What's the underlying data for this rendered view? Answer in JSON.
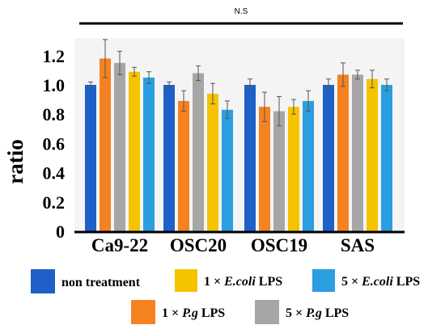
{
  "chart_data": {
    "type": "bar",
    "categories": [
      "Ca9-22",
      "OSC20",
      "OSC19",
      "SAS"
    ],
    "ylabel": "ratio",
    "ylim": [
      0,
      1.3
    ],
    "yticks": [
      "0",
      "0.2",
      "0.4",
      "0.6",
      "0.8",
      "1.0",
      "1.2"
    ],
    "significance": "N.S",
    "series": [
      {
        "name": "non treatment",
        "color": "#1f5fc8",
        "values": [
          1.0,
          1.0,
          1.0,
          1.0
        ],
        "errors": [
          0.02,
          0.02,
          0.04,
          0.04
        ]
      },
      {
        "name": "1 × P.g LPS",
        "label_prefix": "1 × ",
        "label_italic": "P.g",
        "label_suffix": " LPS",
        "color": "#f58220",
        "values": [
          1.18,
          0.89,
          0.85,
          1.07
        ],
        "errors": [
          0.13,
          0.07,
          0.1,
          0.08
        ]
      },
      {
        "name": "5 × P.g LPS",
        "label_prefix": "5 × ",
        "label_italic": "P.g",
        "label_suffix": " LPS",
        "color": "#a6a6a6",
        "values": [
          1.15,
          1.08,
          0.82,
          1.07
        ],
        "errors": [
          0.08,
          0.05,
          0.1,
          0.03
        ]
      },
      {
        "name": "1 × E.coli LPS",
        "label_prefix": "1 × ",
        "label_italic": "E.coli",
        "label_suffix": " LPS",
        "color": "#f5c300",
        "values": [
          1.09,
          0.94,
          0.85,
          1.04
        ],
        "errors": [
          0.03,
          0.07,
          0.05,
          0.06
        ]
      },
      {
        "name": "5 × E.coli LPS",
        "label_prefix": "5 × ",
        "label_italic": "E.coli",
        "label_suffix": " LPS",
        "color": "#2a9ee0",
        "values": [
          1.05,
          0.83,
          0.89,
          1.0
        ],
        "errors": [
          0.04,
          0.06,
          0.07,
          0.04
        ]
      }
    ],
    "legend_position": "bottom",
    "grid": false
  }
}
